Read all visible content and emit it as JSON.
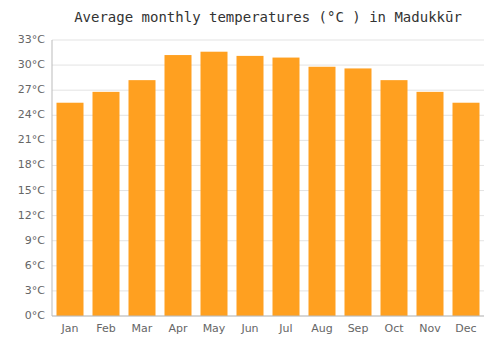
{
  "chart_data": {
    "type": "bar",
    "title": "Average monthly temperatures (°C ) in Madukkūr",
    "categories": [
      "Jan",
      "Feb",
      "Mar",
      "Apr",
      "May",
      "Jun",
      "Jul",
      "Aug",
      "Sep",
      "Oct",
      "Nov",
      "Dec"
    ],
    "values": [
      25.5,
      26.8,
      28.2,
      31.2,
      31.6,
      31.1,
      30.9,
      29.8,
      29.6,
      28.2,
      26.8,
      25.5
    ],
    "color": "#FFA020",
    "ylim": [
      0,
      33
    ],
    "yticks": [
      {
        "value": 0,
        "label": "0°C"
      },
      {
        "value": 3,
        "label": "3°C"
      },
      {
        "value": 6,
        "label": "6°C"
      },
      {
        "value": 9,
        "label": "9°C"
      },
      {
        "value": 12,
        "label": "12°C"
      },
      {
        "value": 15,
        "label": "15°C"
      },
      {
        "value": 18,
        "label": "18°C"
      },
      {
        "value": 21,
        "label": "21°C"
      },
      {
        "value": 24,
        "label": "24°C"
      },
      {
        "value": 27,
        "label": "27°C"
      },
      {
        "value": 30,
        "label": "30°C"
      },
      {
        "value": 33,
        "label": "33°C"
      }
    ],
    "grid": true
  }
}
